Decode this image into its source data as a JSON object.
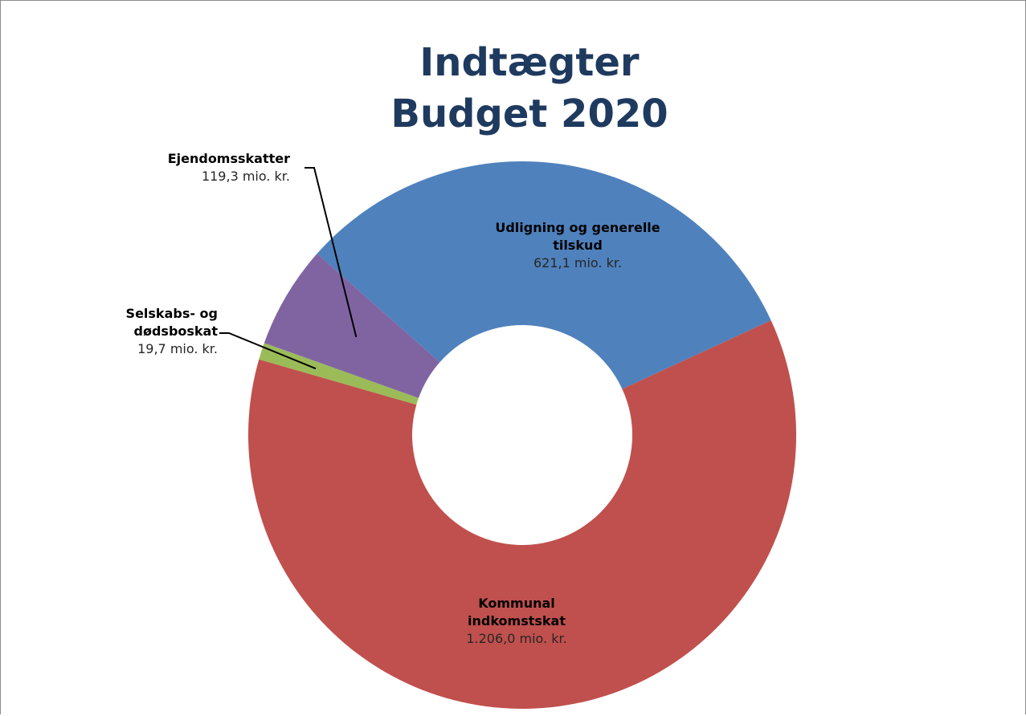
{
  "colors": {
    "title": "#1f3a5f",
    "background": "#ffffff",
    "border": "#8c8c8c"
  },
  "chart_data": {
    "type": "donut",
    "title": [
      "Indtægter",
      "Budget 2020"
    ],
    "unit": "mio. kr.",
    "slices": [
      {
        "name": "Udligning og generelle tilskud",
        "name_lines": [
          "Udligning og generelle",
          "tilskud"
        ],
        "value": 621.1,
        "value_label": "621,1 mio. kr.",
        "color": "#4f81bd"
      },
      {
        "name": "Kommunal indkomstskat",
        "name_lines": [
          "Kommunal",
          "indkomstskat"
        ],
        "value": 1206.0,
        "value_label": "1.206,0 mio. kr.",
        "color": "#c0504d"
      },
      {
        "name": "Selskabs- og dødsboskat",
        "name_lines": [
          "Selskabs- og",
          "dødsboskat"
        ],
        "value": 19.7,
        "value_label": "19,7 mio. kr.",
        "color": "#9bbb59"
      },
      {
        "name": "Ejendomsskatter",
        "name_lines": [
          "Ejendomsskatter"
        ],
        "value": 119.3,
        "value_label": "119,3 mio. kr.",
        "color": "#8064a2"
      }
    ]
  }
}
